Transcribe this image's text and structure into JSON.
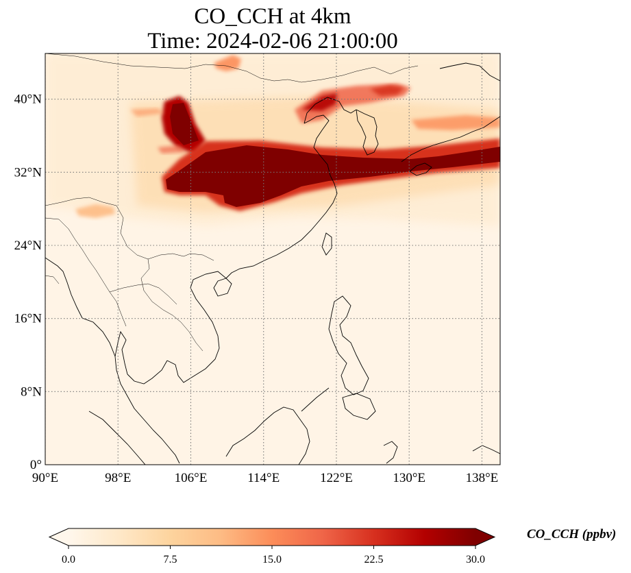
{
  "title": {
    "line1": "CO_CCH at 4km",
    "line2": "Time: 2024-02-06 21:00:00"
  },
  "map": {
    "extent": {
      "lon_min": 90,
      "lon_max": 140,
      "lat_min": 0,
      "lat_max": 45
    },
    "projection": "PlateCarree",
    "gridlines": "dotted gray",
    "lon_ticks": [
      {
        "value": 90,
        "label": "90°E"
      },
      {
        "value": 98,
        "label": "98°E"
      },
      {
        "value": 106,
        "label": "106°E"
      },
      {
        "value": 114,
        "label": "114°E"
      },
      {
        "value": 122,
        "label": "122°E"
      },
      {
        "value": 130,
        "label": "130°E"
      },
      {
        "value": 138,
        "label": "138°E"
      }
    ],
    "lat_ticks": [
      {
        "value": 0,
        "label": "0°"
      },
      {
        "value": 8,
        "label": "8°N"
      },
      {
        "value": 16,
        "label": "16°N"
      },
      {
        "value": 24,
        "label": "24°N"
      },
      {
        "value": 32,
        "label": "32°N"
      },
      {
        "value": 40,
        "label": "40°N"
      }
    ],
    "field": {
      "variable": "CO_CCH",
      "features": [
        {
          "name": "main plume core",
          "lon_range": [
            101.5,
            140
          ],
          "lat_range": [
            29,
            35
          ],
          "level": "≥30"
        },
        {
          "name": "northern plume arm",
          "lon_range": [
            102.5,
            108
          ],
          "lat_range": [
            34,
            40
          ],
          "level": "~22-30"
        },
        {
          "name": "Bohai/Korea band",
          "lon_range": [
            118,
            131
          ],
          "lat_range": [
            38,
            41
          ],
          "level": "~15-25"
        },
        {
          "name": "Japan eastward band",
          "lon_range": [
            128,
            140
          ],
          "lat_range": [
            32,
            36
          ],
          "level": "~20-30"
        },
        {
          "name": "Tibet/Yunnan patch",
          "lon_range": [
            94,
            98.5
          ],
          "lat_range": [
            27,
            29.5
          ],
          "level": "~10-15"
        },
        {
          "name": "northern Mongolia patch",
          "lon_range": [
            108,
            110
          ],
          "lat_range": [
            43.5,
            45
          ],
          "level": "~10"
        }
      ]
    }
  },
  "colorbar": {
    "label": "CO_CCH (ppbv)",
    "cmap": "OrRd",
    "colors": [
      "#fff7ec",
      "#fee8c8",
      "#fdd49e",
      "#fdbb84",
      "#fc8d59",
      "#ef6548",
      "#d7301f",
      "#b30000",
      "#7f0000"
    ],
    "vmin": 0.0,
    "vmax": 30.0,
    "extend": "both",
    "ticks": [
      {
        "value": 0.0,
        "label": "0.0"
      },
      {
        "value": 7.5,
        "label": "7.5"
      },
      {
        "value": 15.0,
        "label": "15.0"
      },
      {
        "value": 22.5,
        "label": "22.5"
      },
      {
        "value": 30.0,
        "label": "30.0"
      }
    ]
  }
}
